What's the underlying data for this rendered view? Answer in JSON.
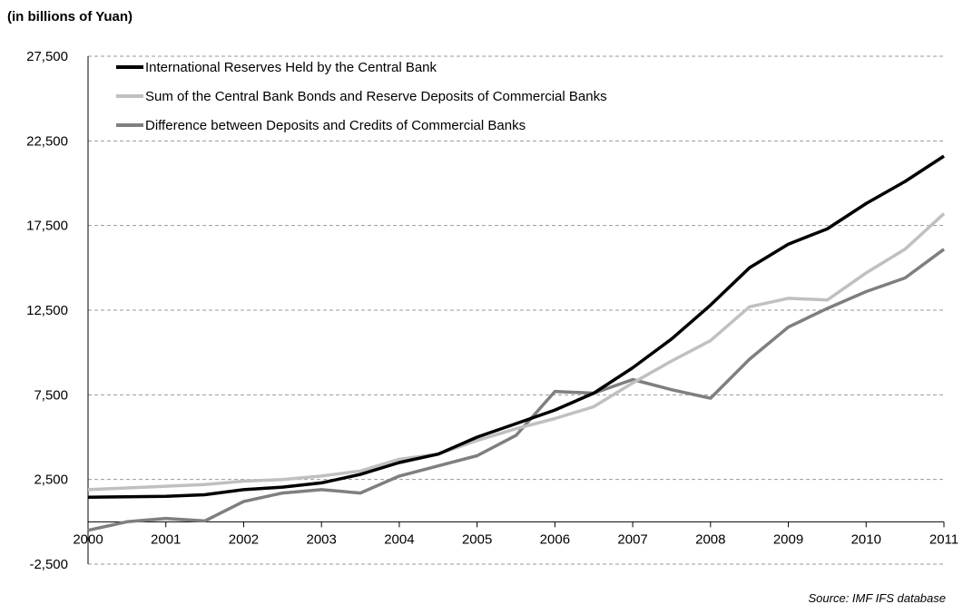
{
  "chart_data": {
    "type": "line",
    "unit_label": "(in billions of Yuan)",
    "source": "Source: IMF IFS database",
    "ylim": [
      -2500,
      27500
    ],
    "yticks": [
      -2500,
      2500,
      7500,
      12500,
      17500,
      22500,
      27500
    ],
    "ytick_labels": [
      "-2,500",
      "2,500",
      "7,500",
      "12,500",
      "17,500",
      "22,500",
      "27,500"
    ],
    "xlim": [
      2000,
      2011
    ],
    "xticks": [
      2000,
      2001,
      2002,
      2003,
      2004,
      2005,
      2006,
      2007,
      2008,
      2009,
      2010,
      2011
    ],
    "grid": "horizontal dashed",
    "legend_position": "top-left",
    "series": [
      {
        "name": "International Reserves Held by the Central Bank",
        "color": "#000000",
        "x": [
          2000,
          2000.5,
          2001,
          2001.5,
          2002,
          2002.5,
          2003,
          2003.5,
          2004,
          2004.5,
          2005,
          2005.5,
          2006,
          2006.5,
          2007,
          2007.5,
          2008,
          2008.5,
          2009,
          2009.5,
          2010,
          2010.5,
          2011
        ],
        "y": [
          1450,
          1480,
          1500,
          1600,
          1900,
          2050,
          2300,
          2800,
          3500,
          4000,
          5000,
          5800,
          6600,
          7600,
          9100,
          10800,
          12800,
          15000,
          16400,
          17300,
          18800,
          20100,
          21600
        ]
      },
      {
        "name": "Sum of the Central Bank Bonds and Reserve Deposits of Commercial Banks",
        "color": "#c0c0c0",
        "x": [
          2000,
          2000.5,
          2001,
          2001.5,
          2002,
          2002.5,
          2003,
          2003.5,
          2004,
          2004.5,
          2005,
          2005.5,
          2006,
          2006.5,
          2007,
          2007.5,
          2008,
          2008.5,
          2009,
          2009.5,
          2010,
          2010.5,
          2011
        ],
        "y": [
          1900,
          2000,
          2100,
          2200,
          2400,
          2500,
          2700,
          3000,
          3700,
          4000,
          4800,
          5500,
          6100,
          6800,
          8200,
          9500,
          10700,
          12700,
          13200,
          13100,
          14700,
          16100,
          18200
        ]
      },
      {
        "name": "Difference between Deposits and Credits of Commercial Banks",
        "color": "#7f7f7f",
        "x": [
          2000,
          2000.5,
          2001,
          2001.5,
          2002,
          2002.5,
          2003,
          2003.5,
          2004,
          2004.5,
          2005,
          2005.5,
          2006,
          2006.5,
          2007,
          2007.5,
          2008,
          2008.5,
          2009,
          2009.5,
          2010,
          2010.5,
          2011
        ],
        "y": [
          -500,
          0,
          200,
          50,
          1200,
          1700,
          1900,
          1700,
          2700,
          3300,
          3900,
          5100,
          7700,
          7600,
          8400,
          7800,
          7300,
          9600,
          11500,
          12600,
          13600,
          14400,
          16100
        ]
      }
    ]
  }
}
